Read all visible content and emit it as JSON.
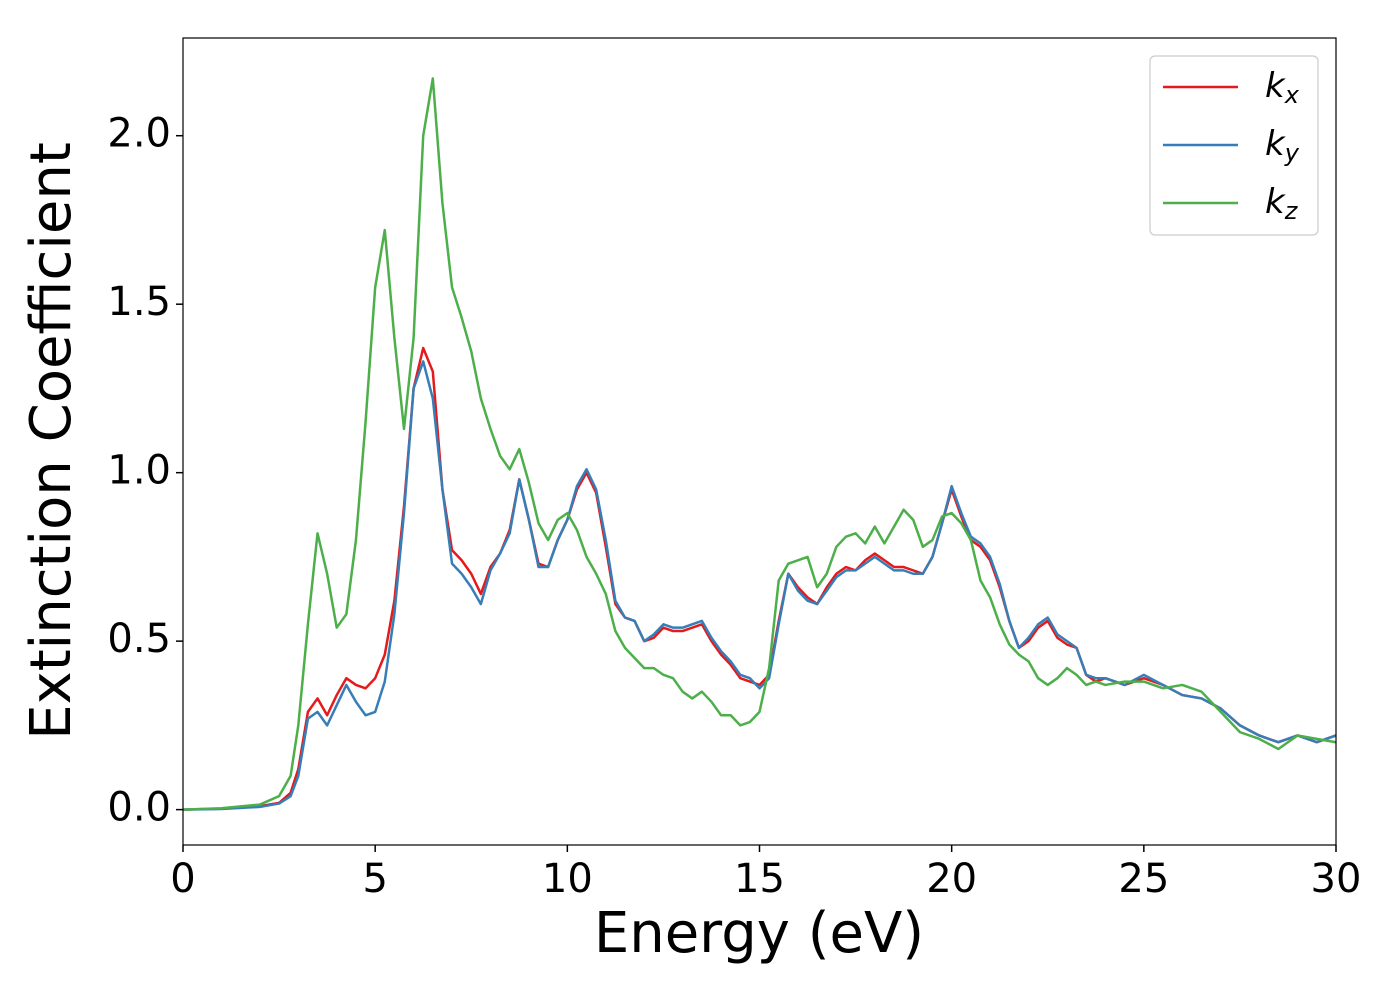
{
  "chart_data": {
    "type": "line",
    "xlabel": "Energy (eV)",
    "ylabel": "Extinction Coefficient",
    "xlim": [
      0,
      30
    ],
    "ylim": [
      -0.105,
      2.29
    ],
    "xticks": [
      0,
      5,
      10,
      15,
      20,
      25,
      30
    ],
    "yticks": [
      {
        "value": 0,
        "label": "0.0"
      },
      0.5,
      {
        "value": 1,
        "label": "1.0"
      },
      1.5,
      {
        "value": 2,
        "label": "2.0"
      }
    ],
    "legend": "upper right",
    "x": [
      0,
      1,
      2,
      2.5,
      2.8,
      3,
      3.25,
      3.5,
      3.75,
      4,
      4.25,
      4.5,
      4.75,
      5,
      5.25,
      5.5,
      5.75,
      6,
      6.25,
      6.5,
      6.75,
      7,
      7.25,
      7.5,
      7.75,
      8,
      8.25,
      8.5,
      8.75,
      9,
      9.25,
      9.5,
      9.75,
      10,
      10.25,
      10.5,
      10.75,
      11,
      11.25,
      11.5,
      11.75,
      12,
      12.25,
      12.5,
      12.75,
      13,
      13.25,
      13.5,
      13.75,
      14,
      14.25,
      14.5,
      14.75,
      15,
      15.25,
      15.5,
      15.75,
      16,
      16.25,
      16.5,
      16.75,
      17,
      17.25,
      17.5,
      17.75,
      18,
      18.25,
      18.5,
      18.75,
      19,
      19.25,
      19.5,
      19.75,
      20,
      20.25,
      20.5,
      20.75,
      21,
      21.25,
      21.5,
      21.75,
      22,
      22.25,
      22.5,
      22.75,
      23,
      23.25,
      23.5,
      23.75,
      24,
      24.5,
      25,
      25.5,
      26,
      26.5,
      27,
      27.5,
      28,
      28.5,
      29,
      29.5,
      30
    ],
    "series": [
      {
        "name": "k_x",
        "color": "#e41a1c",
        "values": [
          0,
          0.003,
          0.01,
          0.02,
          0.05,
          0.12,
          0.29,
          0.33,
          0.28,
          0.34,
          0.39,
          0.37,
          0.36,
          0.39,
          0.46,
          0.62,
          0.9,
          1.25,
          1.37,
          1.3,
          0.95,
          0.77,
          0.74,
          0.7,
          0.64,
          0.72,
          0.76,
          0.83,
          0.98,
          0.86,
          0.73,
          0.72,
          0.8,
          0.86,
          0.95,
          1.0,
          0.94,
          0.78,
          0.61,
          0.57,
          0.56,
          0.5,
          0.51,
          0.54,
          0.53,
          0.53,
          0.54,
          0.55,
          0.5,
          0.46,
          0.43,
          0.39,
          0.38,
          0.37,
          0.4,
          0.56,
          0.7,
          0.66,
          0.63,
          0.61,
          0.66,
          0.7,
          0.72,
          0.71,
          0.74,
          0.76,
          0.74,
          0.72,
          0.72,
          0.71,
          0.7,
          0.75,
          0.85,
          0.95,
          0.87,
          0.8,
          0.78,
          0.74,
          0.66,
          0.56,
          0.48,
          0.5,
          0.54,
          0.56,
          0.51,
          0.49,
          0.48,
          0.4,
          0.38,
          0.39,
          0.37,
          0.39,
          0.37,
          0.34,
          0.33,
          0.3,
          0.25,
          0.22,
          0.2,
          0.22,
          0.2,
          0.22
        ]
      },
      {
        "name": "k_y",
        "color": "#377eb8",
        "values": [
          0,
          0.002,
          0.008,
          0.018,
          0.04,
          0.1,
          0.27,
          0.29,
          0.25,
          0.31,
          0.37,
          0.32,
          0.28,
          0.29,
          0.38,
          0.58,
          0.88,
          1.25,
          1.33,
          1.22,
          0.95,
          0.73,
          0.7,
          0.66,
          0.61,
          0.71,
          0.76,
          0.82,
          0.98,
          0.86,
          0.72,
          0.72,
          0.8,
          0.86,
          0.96,
          1.01,
          0.95,
          0.8,
          0.62,
          0.57,
          0.56,
          0.5,
          0.52,
          0.55,
          0.54,
          0.54,
          0.55,
          0.56,
          0.51,
          0.47,
          0.44,
          0.4,
          0.39,
          0.36,
          0.39,
          0.55,
          0.7,
          0.65,
          0.62,
          0.61,
          0.65,
          0.69,
          0.71,
          0.71,
          0.73,
          0.75,
          0.73,
          0.71,
          0.71,
          0.7,
          0.7,
          0.75,
          0.85,
          0.96,
          0.88,
          0.81,
          0.79,
          0.75,
          0.67,
          0.56,
          0.48,
          0.51,
          0.55,
          0.57,
          0.52,
          0.5,
          0.48,
          0.4,
          0.39,
          0.39,
          0.37,
          0.4,
          0.37,
          0.34,
          0.33,
          0.3,
          0.25,
          0.22,
          0.2,
          0.22,
          0.2,
          0.22
        ]
      },
      {
        "name": "k_z",
        "color": "#4daf4a",
        "values": [
          0,
          0.004,
          0.015,
          0.04,
          0.1,
          0.25,
          0.55,
          0.82,
          0.7,
          0.54,
          0.58,
          0.8,
          1.15,
          1.55,
          1.72,
          1.4,
          1.13,
          1.4,
          2.0,
          2.17,
          1.8,
          1.55,
          1.46,
          1.36,
          1.22,
          1.13,
          1.05,
          1.01,
          1.07,
          0.97,
          0.85,
          0.8,
          0.86,
          0.88,
          0.83,
          0.75,
          0.7,
          0.64,
          0.53,
          0.48,
          0.45,
          0.42,
          0.42,
          0.4,
          0.39,
          0.35,
          0.33,
          0.35,
          0.32,
          0.28,
          0.28,
          0.25,
          0.26,
          0.29,
          0.42,
          0.68,
          0.73,
          0.74,
          0.75,
          0.66,
          0.7,
          0.78,
          0.81,
          0.82,
          0.79,
          0.84,
          0.79,
          0.84,
          0.89,
          0.86,
          0.78,
          0.8,
          0.87,
          0.88,
          0.85,
          0.8,
          0.68,
          0.63,
          0.55,
          0.49,
          0.46,
          0.44,
          0.39,
          0.37,
          0.39,
          0.42,
          0.4,
          0.37,
          0.38,
          0.37,
          0.38,
          0.38,
          0.36,
          0.37,
          0.35,
          0.29,
          0.23,
          0.21,
          0.18,
          0.22,
          0.21,
          0.2
        ]
      }
    ]
  }
}
